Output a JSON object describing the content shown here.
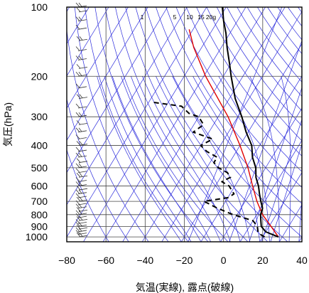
{
  "chart_data": {
    "type": "line",
    "subtype": "skew-T log-p aerological diagram",
    "title": "",
    "xlabel": "気温(実線), 露点(破線)",
    "ylabel": "気圧(hPa)",
    "xlim": [
      -80,
      40
    ],
    "ylim": [
      1050,
      100
    ],
    "y_scale": "log",
    "x_ticks": [
      -80,
      -60,
      -40,
      -20,
      0,
      20,
      40
    ],
    "x_tick_labels": [
      "−80",
      "−60",
      "−40",
      "−20",
      "0",
      "20",
      "40"
    ],
    "y_ticks": [
      1000,
      900,
      800,
      700,
      600,
      500,
      400,
      300,
      200,
      100
    ],
    "y_tick_labels": [
      "1000",
      "900",
      "800",
      "700",
      "600",
      "500",
      "400",
      "300",
      "200",
      "100"
    ],
    "grid": true,
    "mixing_ratio_labels": [
      "1",
      "5",
      "10",
      "15",
      "20g"
    ],
    "colors": {
      "grid": "#444444",
      "background_lines": "#2b2bdc",
      "temperature": "#000000",
      "dewpoint": "#000000",
      "parcel": "#e00000",
      "wind_barbs": "#333333"
    },
    "series": [
      {
        "key": "temperature",
        "style": "solid",
        "points": [
          [
            1000,
            28
          ],
          [
            975,
            24
          ],
          [
            950,
            20
          ],
          [
            925,
            18
          ],
          [
            900,
            16
          ],
          [
            850,
            14
          ],
          [
            800,
            12
          ],
          [
            750,
            11
          ],
          [
            700,
            8
          ],
          [
            650,
            5
          ],
          [
            600,
            2
          ],
          [
            550,
            -2
          ],
          [
            500,
            -5
          ],
          [
            450,
            -10
          ],
          [
            400,
            -14
          ],
          [
            350,
            -21
          ],
          [
            300,
            -28
          ],
          [
            250,
            -37
          ],
          [
            200,
            -46
          ],
          [
            175,
            -51
          ],
          [
            150,
            -57
          ],
          [
            130,
            -62
          ],
          [
            115,
            -67
          ],
          [
            100,
            -72
          ]
        ]
      },
      {
        "key": "dewpoint",
        "style": "dashed",
        "points": [
          [
            1000,
            21
          ],
          [
            975,
            18
          ],
          [
            950,
            16
          ],
          [
            925,
            15
          ],
          [
            900,
            14
          ],
          [
            850,
            10
          ],
          [
            800,
            -2
          ],
          [
            750,
            -12
          ],
          [
            700,
            -21
          ],
          [
            675,
            -10
          ],
          [
            650,
            -8
          ],
          [
            600,
            -13
          ],
          [
            575,
            -18
          ],
          [
            550,
            -15
          ],
          [
            525,
            -18
          ],
          [
            500,
            -24
          ],
          [
            475,
            -28
          ],
          [
            450,
            -28
          ],
          [
            425,
            -35
          ],
          [
            400,
            -40
          ],
          [
            375,
            -36
          ],
          [
            350,
            -48
          ],
          [
            325,
            -45
          ],
          [
            300,
            -50
          ],
          [
            290,
            -56
          ],
          [
            270,
            -62
          ],
          [
            260,
            -77
          ],
          [
            258,
            -79
          ]
        ]
      },
      {
        "key": "parcel",
        "style": "solid",
        "points": [
          [
            1000,
            28
          ],
          [
            900,
            21
          ],
          [
            800,
            13
          ],
          [
            700,
            6
          ],
          [
            600,
            -1
          ],
          [
            500,
            -9
          ],
          [
            400,
            -20
          ],
          [
            300,
            -35
          ],
          [
            200,
            -59
          ],
          [
            150,
            -74
          ],
          [
            125,
            -82
          ]
        ]
      }
    ],
    "wind_barbs": {
      "pressure_levels": [
        1000,
        975,
        950,
        925,
        900,
        875,
        850,
        825,
        800,
        775,
        750,
        725,
        700,
        675,
        650,
        625,
        600,
        575,
        550,
        525,
        500,
        475,
        450,
        425,
        400,
        375,
        350,
        325,
        300,
        275,
        250,
        225,
        200,
        185,
        170,
        155,
        140,
        125,
        115,
        105,
        100
      ]
    }
  }
}
